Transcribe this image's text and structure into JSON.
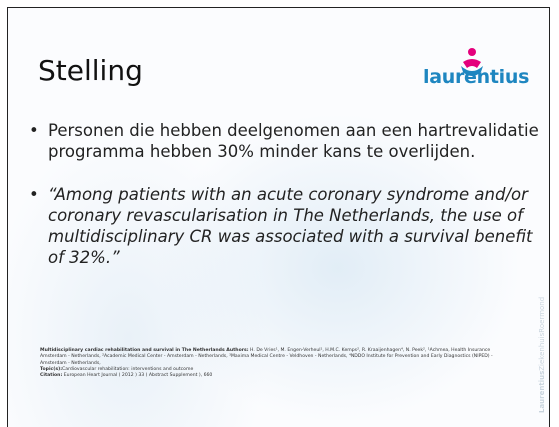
{
  "header": {
    "title": "Stelling",
    "logo": "laurentius"
  },
  "bullets": [
    "Personen die hebben deelgenomen aan een hartrevalidatie programma hebben 30% minder kans te overlijden.",
    "“Among patients with an acute coronary syndrome and/or coronary revascularisation in The Netherlands, the use of multidisciplinary CR was associated with a survival benefit of 32%.”"
  ],
  "citation": {
    "title_label": "Multidisciplinary cardiac rehabilitation and survival in The Netherlands Authors:",
    "authors": "H. De Vries¹, M. Engen-Verheul¹, H.M.C. Kemps², R. Kraaijenhagen⁴, N. Peek², ¹Achmea, Health Insurance Amsterdam - Netherlands, ²Academic Medical Center - Amsterdam - Netherlands, ³Maxima Medical Centre - Veldhoven - Netherlands, ⁴NDDO Institute for Prevention and Early Diagnostics (NIPED) - Amsterdam - Netherlands,",
    "topic_label": "Topic(s):",
    "topic": "Cardiovascular rehabilitation: interventions and outcome",
    "citation_label": "Citation:",
    "citation": "European Heart Journal ( 2012 ) 33 ( Abstract Supplement ), 660"
  },
  "side_text": [
    "Laurentius",
    "ZiekenhuisRoermond"
  ]
}
